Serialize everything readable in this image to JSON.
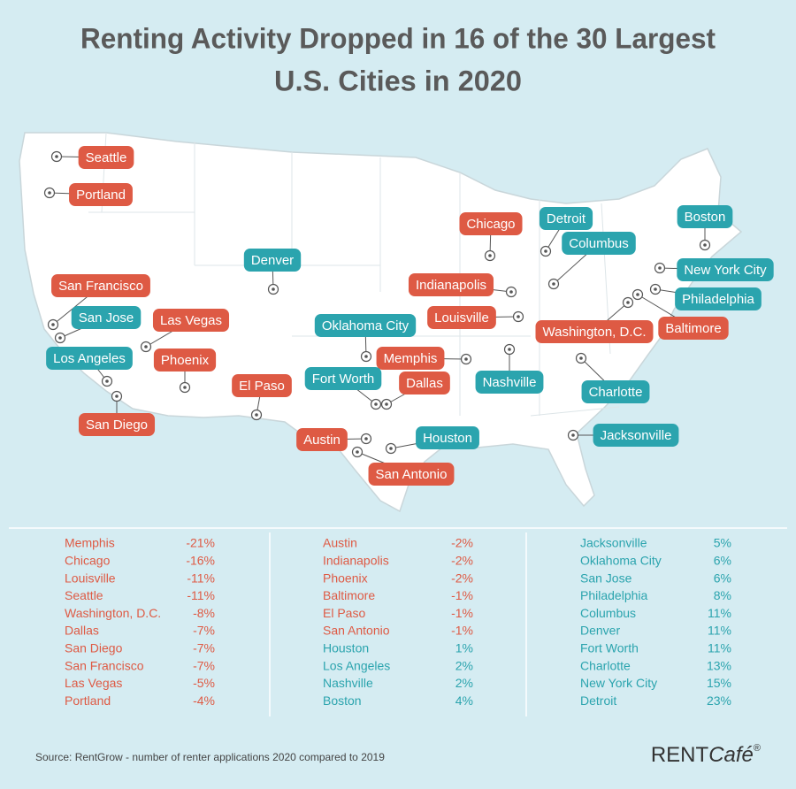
{
  "title": [
    "Renting Activity Dropped in 16 of the 30 Largest",
    "U.S. Cities in 2020"
  ],
  "map": {
    "labels": [
      {
        "name": "Seattle",
        "color": "#de5a44"
      },
      {
        "name": "Portland",
        "color": "#de5a44"
      },
      {
        "name": "Chicago",
        "color": "#de5a44"
      },
      {
        "name": "Detroit",
        "color": "#2ba4ae"
      },
      {
        "name": "Columbus",
        "color": "#2ba4ae"
      },
      {
        "name": "Boston",
        "color": "#2ba4ae"
      },
      {
        "name": "New York City",
        "color": "#2ba4ae"
      },
      {
        "name": "Philadelphia",
        "color": "#2ba4ae"
      },
      {
        "name": "Baltimore",
        "color": "#de5a44"
      },
      {
        "name": "Washington, D.C.",
        "color": "#de5a44"
      },
      {
        "name": "Denver",
        "color": "#2ba4ae"
      },
      {
        "name": "Indianapolis",
        "color": "#de5a44"
      },
      {
        "name": "Louisville",
        "color": "#de5a44"
      },
      {
        "name": "San Francisco",
        "color": "#de5a44"
      },
      {
        "name": "San Jose",
        "color": "#2ba4ae"
      },
      {
        "name": "Las Vegas",
        "color": "#de5a44"
      },
      {
        "name": "Los Angeles",
        "color": "#2ba4ae"
      },
      {
        "name": "Phoenix",
        "color": "#de5a44"
      },
      {
        "name": "Oklahoma City",
        "color": "#2ba4ae"
      },
      {
        "name": "Memphis",
        "color": "#de5a44"
      },
      {
        "name": "Fort Worth",
        "color": "#2ba4ae"
      },
      {
        "name": "Dallas",
        "color": "#de5a44"
      },
      {
        "name": "Nashville",
        "color": "#2ba4ae"
      },
      {
        "name": "Charlotte",
        "color": "#2ba4ae"
      },
      {
        "name": "El Paso",
        "color": "#de5a44"
      },
      {
        "name": "San Diego",
        "color": "#de5a44"
      },
      {
        "name": "Austin",
        "color": "#de5a44"
      },
      {
        "name": "Houston",
        "color": "#2ba4ae"
      },
      {
        "name": "San Antonio",
        "color": "#de5a44"
      },
      {
        "name": "Jacksonville",
        "color": "#2ba4ae"
      }
    ]
  },
  "table": {
    "columns": [
      [
        {
          "city": "Memphis",
          "change": "-21%",
          "color": "#de5a44"
        },
        {
          "city": "Chicago",
          "change": "-16%",
          "color": "#de5a44"
        },
        {
          "city": "Louisville",
          "change": "-11%",
          "color": "#de5a44"
        },
        {
          "city": "Seattle",
          "change": "-11%",
          "color": "#de5a44"
        },
        {
          "city": "Washington, D.C.",
          "change": "-8%",
          "color": "#de5a44"
        },
        {
          "city": "Dallas",
          "change": "-7%",
          "color": "#de5a44"
        },
        {
          "city": "San Diego",
          "change": "-7%",
          "color": "#de5a44"
        },
        {
          "city": "San Francisco",
          "change": "-7%",
          "color": "#de5a44"
        },
        {
          "city": "Las Vegas",
          "change": "-5%",
          "color": "#de5a44"
        },
        {
          "city": "Portland",
          "change": "-4%",
          "color": "#de5a44"
        }
      ],
      [
        {
          "city": "Austin",
          "change": "-2%",
          "color": "#de5a44"
        },
        {
          "city": "Indianapolis",
          "change": "-2%",
          "color": "#de5a44"
        },
        {
          "city": "Phoenix",
          "change": "-2%",
          "color": "#de5a44"
        },
        {
          "city": "Baltimore",
          "change": "-1%",
          "color": "#de5a44"
        },
        {
          "city": "El Paso",
          "change": "-1%",
          "color": "#de5a44"
        },
        {
          "city": "San Antonio",
          "change": "-1%",
          "color": "#de5a44"
        },
        {
          "city": "Houston",
          "change": "1%",
          "color": "#2ba4ae"
        },
        {
          "city": "Los Angeles",
          "change": "2%",
          "color": "#2ba4ae"
        },
        {
          "city": "Nashville",
          "change": "2%",
          "color": "#2ba4ae"
        },
        {
          "city": "Boston",
          "change": "4%",
          "color": "#2ba4ae"
        }
      ],
      [
        {
          "city": "Jacksonville",
          "change": "5%",
          "color": "#2ba4ae"
        },
        {
          "city": "Oklahoma City",
          "change": "6%",
          "color": "#2ba4ae"
        },
        {
          "city": "San Jose",
          "change": "6%",
          "color": "#2ba4ae"
        },
        {
          "city": "Philadelphia",
          "change": "8%",
          "color": "#2ba4ae"
        },
        {
          "city": "Columbus",
          "change": "11%",
          "color": "#2ba4ae"
        },
        {
          "city": "Denver",
          "change": "11%",
          "color": "#2ba4ae"
        },
        {
          "city": "Fort Worth",
          "change": "11%",
          "color": "#2ba4ae"
        },
        {
          "city": "Charlotte",
          "change": "13%",
          "color": "#2ba4ae"
        },
        {
          "city": "New York City",
          "change": "15%",
          "color": "#2ba4ae"
        },
        {
          "city": "Detroit",
          "change": "23%",
          "color": "#2ba4ae"
        }
      ]
    ]
  },
  "source": "Source: RentGrow - number of renter applications 2020 compared to 2019",
  "logo": {
    "part1": "RENT",
    "part2": "Café",
    "mark": "®"
  }
}
